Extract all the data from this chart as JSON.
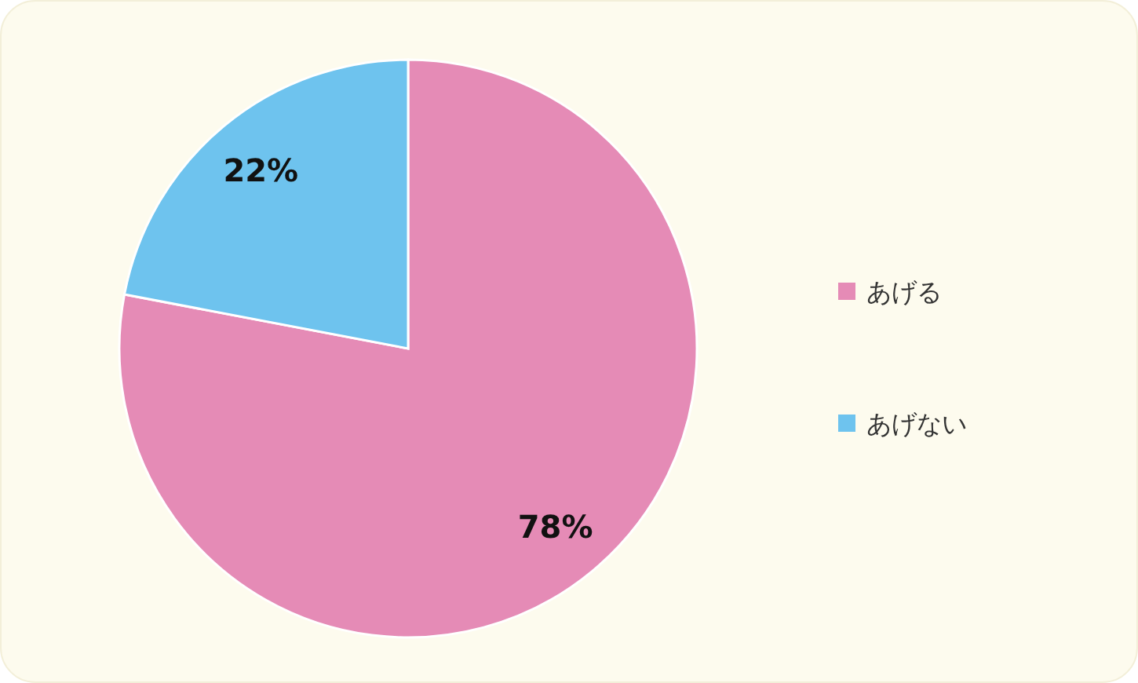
{
  "chart_data": {
    "type": "pie",
    "categories": [
      "あげる",
      "あげない"
    ],
    "values": [
      78,
      22
    ],
    "colors": [
      "#e58bb6",
      "#6ec3ee"
    ],
    "value_labels": [
      "78%",
      "22%"
    ],
    "legend": "right"
  }
}
